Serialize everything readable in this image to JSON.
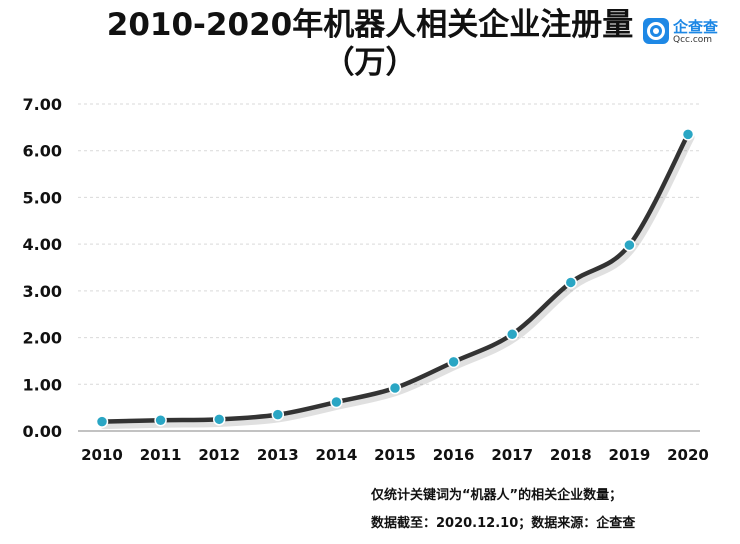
{
  "chart_data": {
    "type": "line",
    "title_line1": "2010-2020年机器人相关企业注册量",
    "title_line2": "（万）",
    "categories": [
      "2010",
      "2011",
      "2012",
      "2013",
      "2014",
      "2015",
      "2016",
      "2017",
      "2018",
      "2019",
      "2020"
    ],
    "values": [
      0.2,
      0.23,
      0.25,
      0.35,
      0.62,
      0.92,
      1.48,
      2.07,
      3.18,
      3.98,
      6.35
    ],
    "ylim": [
      0,
      7
    ],
    "y_ticks": [
      "0.00",
      "1.00",
      "2.00",
      "3.00",
      "4.00",
      "5.00",
      "6.00",
      "7.00"
    ],
    "y_tick_values": [
      0,
      1,
      2,
      3,
      4,
      5,
      6,
      7
    ],
    "grid": true,
    "line_color": "#333333",
    "marker_color": "#2aa6c4"
  },
  "logo": {
    "name": "企查查",
    "domain": "Qcc.com",
    "color": "#1e88e5"
  },
  "notes": {
    "line1": "仅统计关键词为“机器人”的相关企业数量；",
    "line2": "数据截至：2020.12.10；数据来源：企查查"
  }
}
